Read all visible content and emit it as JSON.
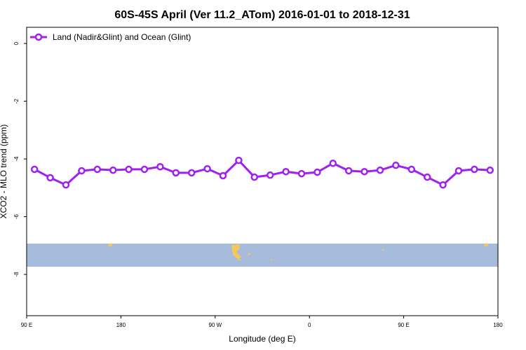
{
  "chart_data": {
    "type": "line",
    "title": "60S-45S April (Ver 11.2_ATom)   2016-01-01 to 2018-12-31",
    "xlabel": "Longitude (deg E)",
    "ylabel": "XCO2 - MLO trend (ppm)",
    "xlim": [
      90,
      540
    ],
    "xticks": [
      {
        "value": 90,
        "label": "90 E"
      },
      {
        "value": 180,
        "label": "180"
      },
      {
        "value": 270,
        "label": "90 W"
      },
      {
        "value": 360,
        "label": "0"
      },
      {
        "value": 450,
        "label": "90 E"
      },
      {
        "value": 540,
        "label": "180"
      }
    ],
    "ylim": [
      -9.43,
      0.56
    ],
    "yticks": [
      0,
      -2,
      -4,
      -6,
      -8
    ],
    "x": [
      97.5,
      112.5,
      127.5,
      142.5,
      157.5,
      172.5,
      187.5,
      202.5,
      217.5,
      232.5,
      247.5,
      262.5,
      277.5,
      292.5,
      307.5,
      322.5,
      337.5,
      352.5,
      367.5,
      382.5,
      397.5,
      412.5,
      427.5,
      442.5,
      457.5,
      472.5,
      487.5,
      502.5,
      517.5,
      532.5
    ],
    "series": [
      {
        "name": "Land (Nadir&Glint) and Ocean (Glint)",
        "color": "#a020f0",
        "values": [
          -4.36,
          -4.65,
          -4.9,
          -4.41,
          -4.36,
          -4.39,
          -4.36,
          -4.36,
          -4.27,
          -4.48,
          -4.48,
          -4.34,
          -4.58,
          -4.05,
          -4.63,
          -4.56,
          -4.44,
          -4.51,
          -4.46,
          -4.15,
          -4.41,
          -4.44,
          -4.39,
          -4.22,
          -4.36,
          -4.63,
          -4.9,
          -4.41,
          -4.36,
          -4.39
        ]
      }
    ],
    "legend": "top-left"
  }
}
